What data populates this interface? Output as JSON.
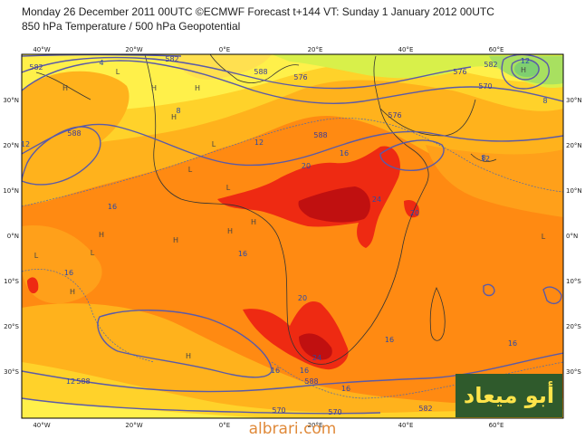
{
  "header": {
    "line1": "Monday 26 December 2011 00UTC ©ECMWF Forecast t+144 VT: Sunday 1 January 2012 00UTC",
    "line2": "850 hPa Temperature / 500 hPa Geopotential"
  },
  "map": {
    "lon_ticks_top": [
      "40°W",
      "20°W",
      "0°E",
      "20°E",
      "40°E",
      "60°E"
    ],
    "lon_ticks_bottom": [
      "40°W",
      "20°W",
      "0°E",
      "20°E",
      "40°E",
      "60°E"
    ],
    "lat_ticks_left": [
      "30°N",
      "20°N",
      "10°N",
      "0°N",
      "10°S",
      "20°S",
      "30°S"
    ],
    "lat_ticks_right": [
      "30°N",
      "20°N",
      "10°N",
      "0°N",
      "10°S",
      "20°S",
      "30°S"
    ],
    "temp_labels": [
      "16",
      "12",
      "8",
      "4",
      "20",
      "16",
      "16",
      "24",
      "20",
      "12",
      "16",
      "16",
      "16",
      "24",
      "20",
      "12",
      "12",
      "16",
      "16",
      "16",
      "8",
      "12",
      "8"
    ],
    "geo_labels": [
      "582",
      "582",
      "576",
      "570",
      "576",
      "588",
      "588",
      "588",
      "582",
      "576",
      "570",
      "588",
      "588",
      "582",
      "570"
    ],
    "pressure_marks": [
      "H",
      "H",
      "H",
      "H",
      "L",
      "L",
      "L",
      "H",
      "H",
      "H",
      "H",
      "L",
      "L",
      "L",
      "H",
      "H",
      "L",
      "H"
    ],
    "colors": {
      "light_yellow": "#fff04a",
      "yellow": "#ffd22a",
      "orange_light": "#ffb21c",
      "orange": "#ff8a12",
      "red": "#ee2a12",
      "dark_red": "#c01010",
      "green": "#bfe84a",
      "contour": "#5a5aa8"
    }
  },
  "logo": {
    "text": "أبو ميعاد"
  },
  "watermark": {
    "text": "albrari.com"
  }
}
